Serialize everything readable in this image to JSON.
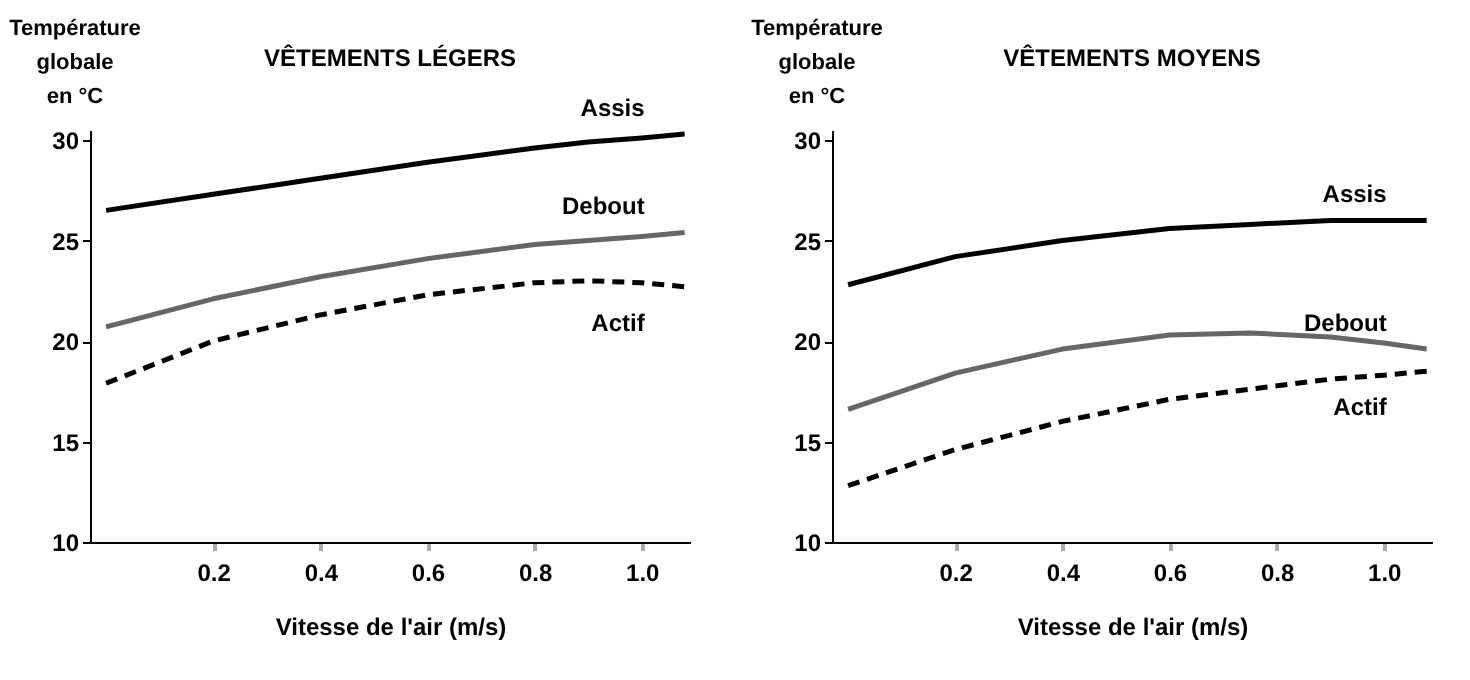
{
  "chart_data": [
    {
      "type": "line",
      "title": "VÊTEMENTS LÉGERS",
      "xlabel": "Vitesse de l'air (m/s)",
      "ylabel": "Température\nglobale\nen °C",
      "x": [
        0,
        0.2,
        0.4,
        0.6,
        0.8,
        0.9,
        1.0,
        1.08
      ],
      "series": [
        {
          "name": "Assis",
          "color": "#000000",
          "line_style": "solid",
          "values": [
            26.5,
            27.3,
            28.1,
            28.9,
            29.6,
            29.9,
            30.1,
            30.3
          ]
        },
        {
          "name": "Debout",
          "color": "#666666",
          "line_style": "solid",
          "values": [
            20.7,
            22.1,
            23.2,
            24.1,
            24.8,
            25.0,
            25.2,
            25.4
          ]
        },
        {
          "name": "Actif",
          "color": "#000000",
          "line_style": "dashed",
          "values": [
            17.9,
            20.0,
            21.3,
            22.3,
            22.9,
            23.0,
            22.9,
            22.7
          ]
        }
      ],
      "xlim": [
        -0.03,
        1.09
      ],
      "xticks": [
        0.2,
        0.4,
        0.6,
        0.8,
        {
          "value": 1,
          "label": "1.0"
        }
      ],
      "ylim": [
        10,
        30.5
      ],
      "yticks": [
        10,
        15,
        20,
        25,
        30
      ],
      "grid": false,
      "marker": "none"
    },
    {
      "type": "line",
      "title": "VÊTEMENTS  MOYENS",
      "xlabel": "Vitesse de l'air (m/s)",
      "ylabel": "Température\nglobale\nen °C",
      "x": [
        0,
        0.2,
        0.4,
        0.6,
        0.75,
        0.9,
        1.0,
        1.08
      ],
      "series": [
        {
          "name": "Assis",
          "color": "#000000",
          "line_style": "solid",
          "values": [
            22.8,
            24.2,
            25.0,
            25.6,
            25.8,
            26.0,
            26.0,
            26.0
          ]
        },
        {
          "name": "Debout",
          "color": "#666666",
          "line_style": "solid",
          "values": [
            16.6,
            18.4,
            19.6,
            20.3,
            20.4,
            20.2,
            19.9,
            19.6
          ]
        },
        {
          "name": "Actif",
          "color": "#000000",
          "line_style": "dashed",
          "values": [
            12.8,
            14.6,
            16.0,
            17.1,
            17.6,
            18.1,
            18.3,
            18.5
          ]
        }
      ],
      "xlim": [
        -0.03,
        1.09
      ],
      "xticks": [
        0.2,
        0.4,
        0.6,
        0.8,
        {
          "value": 1,
          "label": "1.0"
        }
      ],
      "ylim": [
        10,
        30.5
      ],
      "yticks": [
        10,
        15,
        20,
        25,
        30
      ],
      "grid": false,
      "marker": "none"
    }
  ]
}
